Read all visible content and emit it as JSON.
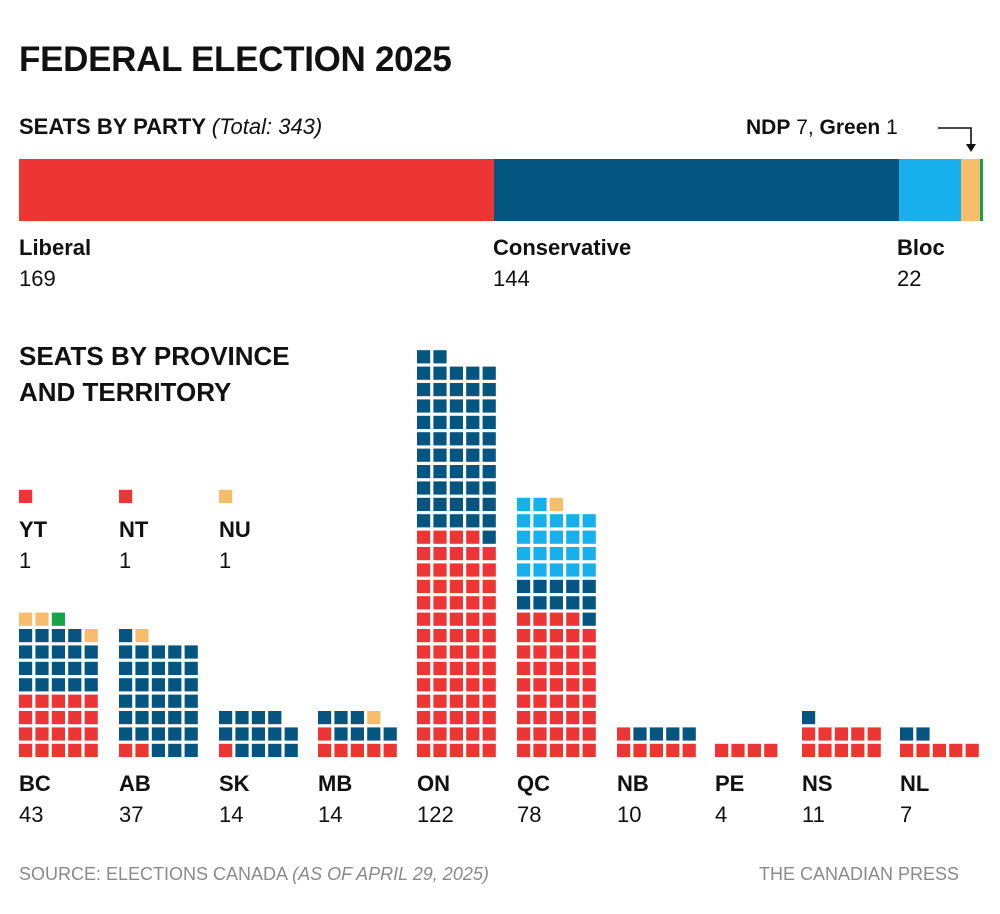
{
  "colors": {
    "Liberal": "#ee3535",
    "Conservative": "#055581",
    "Bloc": "#17b0ec",
    "NDP": "#f7bd6a",
    "Green": "#16a34a"
  },
  "title": "FEDERAL ELECTION 2025",
  "seats_by_party": {
    "label": "SEATS BY PARTY",
    "total_note": "(Total: 343)",
    "small_parties": {
      "ndp_label": "NDP",
      "ndp_value": "7,",
      "green_label": "Green",
      "green_value": "1"
    },
    "labels": [
      {
        "name": "Liberal",
        "value": "169"
      },
      {
        "name": "Conservative",
        "value": "144"
      },
      {
        "name": "Bloc",
        "value": "22"
      }
    ]
  },
  "province_section": {
    "line1": "SEATS BY PROVINCE",
    "line2": "AND TERRITORY"
  },
  "footer": {
    "source_prefix": "SOURCE: ELECTIONS CANADA",
    "source_date": "(AS OF APRIL 29, 2025)",
    "credit": "THE CANADIAN PRESS"
  },
  "chart_data": [
    {
      "type": "bar",
      "title": "SEATS BY PARTY",
      "total": 343,
      "categories": [
        "Liberal",
        "Conservative",
        "Bloc",
        "NDP",
        "Green"
      ],
      "values": [
        169,
        144,
        22,
        7,
        1
      ]
    },
    {
      "type": "waffle",
      "title": "SEATS BY PROVINCE AND TERRITORY",
      "parties": [
        "Liberal",
        "Conservative",
        "Bloc",
        "NDP",
        "Green"
      ],
      "provinces": [
        {
          "code": "BC",
          "total": "43",
          "seats": {
            "Liberal": 20,
            "Conservative": 19,
            "NDP": 3,
            "Green": 1
          }
        },
        {
          "code": "AB",
          "total": "37",
          "seats": {
            "Liberal": 2,
            "Conservative": 34,
            "NDP": 1
          }
        },
        {
          "code": "SK",
          "total": "14",
          "seats": {
            "Liberal": 1,
            "Conservative": 13
          }
        },
        {
          "code": "MB",
          "total": "14",
          "seats": {
            "Liberal": 6,
            "Conservative": 7,
            "NDP": 1
          }
        },
        {
          "code": "ON",
          "total": "122",
          "seats": {
            "Liberal": 69,
            "Conservative": 53
          }
        },
        {
          "code": "QC",
          "total": "78",
          "seats": {
            "Liberal": 44,
            "Conservative": 11,
            "Bloc": 22,
            "NDP": 1
          }
        },
        {
          "code": "NB",
          "total": "10",
          "seats": {
            "Liberal": 6,
            "Conservative": 4
          }
        },
        {
          "code": "PE",
          "total": "4",
          "seats": {
            "Liberal": 4
          }
        },
        {
          "code": "NS",
          "total": "11",
          "seats": {
            "Liberal": 10,
            "Conservative": 1
          }
        },
        {
          "code": "NL",
          "total": "7",
          "seats": {
            "Liberal": 5,
            "Conservative": 2
          }
        },
        {
          "code": "YT",
          "total": "1",
          "seats": {
            "Liberal": 1
          }
        },
        {
          "code": "NT",
          "total": "1",
          "seats": {
            "Liberal": 1
          }
        },
        {
          "code": "NU",
          "total": "1",
          "seats": {
            "NDP": 1
          }
        }
      ]
    }
  ]
}
